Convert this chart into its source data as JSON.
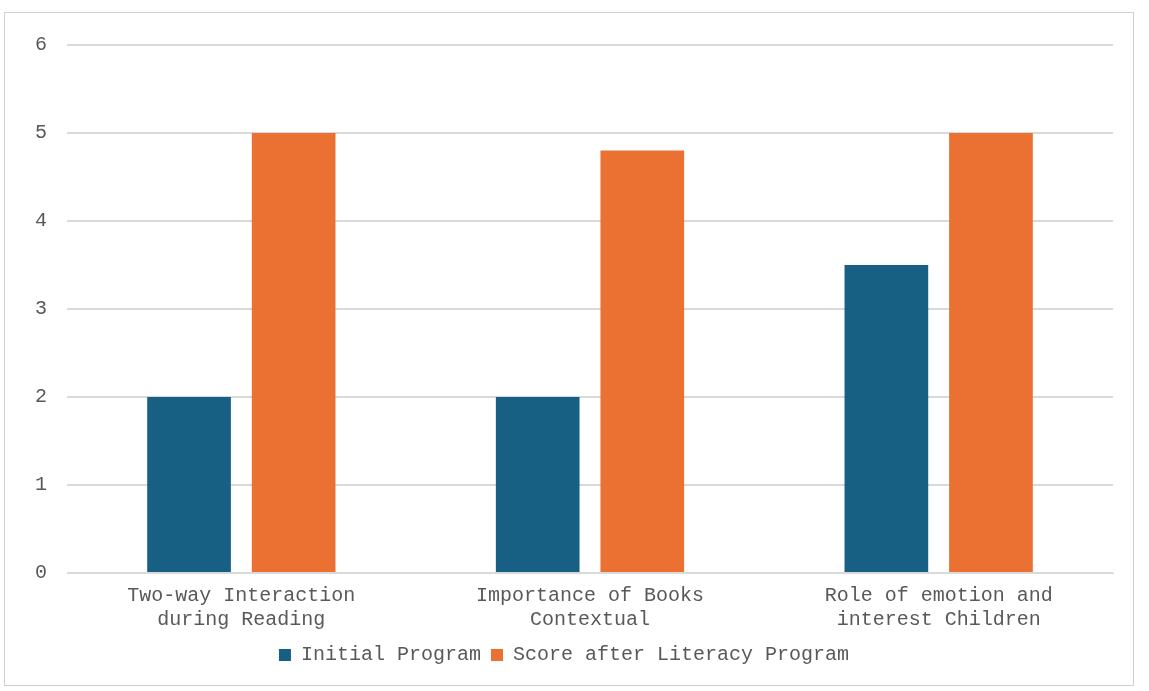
{
  "chart_data": {
    "type": "bar",
    "categories": [
      "Two-way Interaction during Reading",
      "Importance of Books Contextual",
      "Role of emotion and interest Children"
    ],
    "series": [
      {
        "name": "Initial Program",
        "color": "#175f83",
        "values": [
          2,
          2,
          3.5
        ]
      },
      {
        "name": "Score after Literacy Program",
        "color": "#ea7132",
        "values": [
          5,
          4.8,
          5
        ]
      }
    ],
    "ylim": [
      0,
      6
    ],
    "yticks": [
      0,
      1,
      2,
      3,
      4,
      5,
      6
    ],
    "grid": "y",
    "legend": "bottom"
  }
}
